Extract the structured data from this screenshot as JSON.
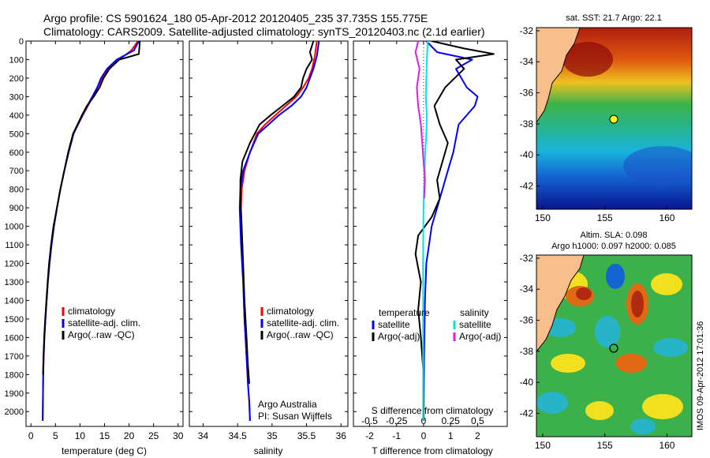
{
  "header": {
    "line1": "Argo profile: CS 5901624_180 05-Apr-2012 20120405_235 37.735S 155.775E",
    "line2": "Climatology: CARS2009. Satellite-adjusted climatology: synTS_20120403.nc (2.1d earlier)"
  },
  "credit": {
    "line1": "Argo Australia",
    "line2": "PI: Susan Wijffels"
  },
  "stamp": "IMOS 09-Apr-2012 17:01:36",
  "map_titles": {
    "sst": "sat. SST: 21.7 Argo: 22.1",
    "sla1": "Altim. SLA: 0.098",
    "sla2": "Argo h1000: 0.097 h2000: 0.085"
  },
  "colors": {
    "climatology": "#ff0000",
    "satellite": "#0000ff",
    "argo": "#000000",
    "salinity_satellite": "#00e6e6",
    "salinity_argo": "#e619e6",
    "land": "#f8be8c",
    "marker": "#ffff00"
  },
  "chart_data": [
    {
      "type": "line",
      "panel": "temperature",
      "xlabel": "temperature (deg C)",
      "ylabel": "",
      "xlim": [
        -1,
        31
      ],
      "ylim": [
        2080,
        0
      ],
      "xticks": [
        0,
        5,
        10,
        15,
        20,
        25,
        30
      ],
      "yticks": [
        0,
        100,
        200,
        300,
        400,
        500,
        600,
        700,
        800,
        900,
        1000,
        1100,
        1200,
        1300,
        1400,
        1500,
        1600,
        1700,
        1800,
        1900,
        2000
      ],
      "legend": [
        "climatology",
        "satellite-adj. clim.",
        "Argo(..raw -QC)"
      ],
      "legend_position": "lower-right",
      "series": [
        {
          "name": "climatology",
          "color": "#ff0000",
          "x": [
            21.8,
            20.5,
            18.0,
            15.8,
            14.5,
            13.6,
            12.6,
            11.6,
            10.6,
            9.6,
            8.6,
            7.6,
            6.8,
            6.0,
            5.3,
            4.7,
            4.2,
            3.8,
            3.45,
            3.2,
            2.95,
            2.75,
            2.6,
            2.5,
            2.45,
            2.4
          ],
          "y": [
            0,
            50,
            100,
            150,
            200,
            250,
            300,
            350,
            400,
            450,
            500,
            600,
            700,
            800,
            900,
            1000,
            1100,
            1200,
            1300,
            1400,
            1500,
            1600,
            1700,
            1800,
            1900,
            2050
          ]
        },
        {
          "name": "satellite-adj. clim.",
          "color": "#0000ff",
          "x": [
            22.0,
            21.0,
            17.5,
            15.5,
            14.3,
            13.5,
            12.5,
            11.5,
            10.5,
            9.6,
            8.7,
            7.7,
            6.8,
            6.0,
            5.3,
            4.7,
            4.2,
            3.8,
            3.45,
            3.2,
            2.95,
            2.75,
            2.6,
            2.5,
            2.45,
            2.4
          ],
          "y": [
            0,
            50,
            100,
            150,
            200,
            250,
            300,
            350,
            400,
            450,
            500,
            600,
            700,
            800,
            900,
            1000,
            1100,
            1200,
            1300,
            1400,
            1500,
            1600,
            1700,
            1800,
            1900,
            2050
          ]
        },
        {
          "name": "Argo(..raw -QC)",
          "color": "#000000",
          "x": [
            22.2,
            22.0,
            18.0,
            16.0,
            14.8,
            14.0,
            12.8,
            11.4,
            10.4,
            9.5,
            8.6,
            7.6,
            6.8,
            6.0,
            5.3,
            4.6,
            4.1,
            3.7,
            3.4,
            3.15,
            2.9,
            2.7,
            2.55,
            2.45
          ],
          "y": [
            0,
            70,
            100,
            150,
            200,
            250,
            300,
            350,
            400,
            450,
            500,
            600,
            700,
            800,
            900,
            1000,
            1100,
            1200,
            1300,
            1400,
            1500,
            1600,
            1700,
            1800
          ]
        }
      ]
    },
    {
      "type": "line",
      "panel": "salinity",
      "xlabel": "salinity",
      "ylabel": "",
      "xlim": [
        33.8,
        36.1
      ],
      "ylim": [
        2080,
        0
      ],
      "xticks": [
        34,
        34.5,
        35,
        35.5,
        36
      ],
      "xtick_labels": [
        "34",
        "34.5",
        "35",
        "35.5",
        "36"
      ],
      "legend": [
        "climatology",
        "satellite-adj. clim.",
        "Argo(..raw -QC)"
      ],
      "legend_position": "center-right",
      "series": [
        {
          "name": "climatology",
          "color": "#ff0000",
          "x": [
            35.65,
            35.62,
            35.58,
            35.53,
            35.45,
            35.35,
            35.2,
            35.05,
            34.9,
            34.78,
            34.68,
            34.6,
            34.56,
            34.55,
            34.56,
            34.58,
            34.6,
            34.63,
            34.65,
            34.67,
            34.68
          ],
          "y": [
            0,
            80,
            150,
            200,
            250,
            300,
            350,
            400,
            450,
            500,
            600,
            700,
            800,
            900,
            1100,
            1300,
            1500,
            1700,
            1850,
            1950,
            2050
          ]
        },
        {
          "name": "satellite-adj. clim.",
          "color": "#0000ff",
          "x": [
            35.68,
            35.65,
            35.6,
            35.55,
            35.5,
            35.42,
            35.28,
            35.1,
            34.95,
            34.8,
            34.68,
            34.58,
            34.54,
            34.53,
            34.55,
            34.58,
            34.6,
            34.63,
            34.65,
            34.67,
            34.68
          ],
          "y": [
            0,
            80,
            150,
            200,
            250,
            300,
            350,
            400,
            450,
            500,
            600,
            700,
            800,
            900,
            1100,
            1300,
            1500,
            1700,
            1850,
            1950,
            2050
          ]
        },
        {
          "name": "Argo(..raw -QC)",
          "color": "#000000",
          "x": [
            35.6,
            35.55,
            35.58,
            35.5,
            35.45,
            35.42,
            35.32,
            35.15,
            34.98,
            34.82,
            34.68,
            34.57,
            34.54,
            34.54,
            34.56,
            34.58,
            34.6,
            34.63,
            34.65,
            34.67
          ],
          "y": [
            0,
            60,
            100,
            150,
            200,
            250,
            300,
            350,
            400,
            450,
            550,
            650,
            750,
            850,
            1000,
            1200,
            1400,
            1600,
            1750,
            1850
          ]
        }
      ]
    },
    {
      "type": "line",
      "panel": "difference",
      "xlabel": "T difference from climatology",
      "top_xlabel": "S difference from climatology",
      "xlim": [
        -2.6,
        3.1
      ],
      "ylim": [
        2080,
        0
      ],
      "xticks": [
        -2,
        -1,
        0,
        1,
        2
      ],
      "top_xticks": [
        -0.5,
        -0.25,
        0,
        0.25,
        0.5
      ],
      "top_xtick_labels": [
        "-0.5",
        "-0.25",
        "0",
        "0.25",
        "0.5"
      ],
      "legend": [
        "temperature satellite",
        "temperature Argo(-adj)",
        "salinity satellite",
        "salinity Argo(-adj)"
      ],
      "legend_titles": [
        "temperature",
        "salinity"
      ],
      "legend_labels": [
        "satellite",
        "Argo(-adj)",
        "satellite",
        "Argo(-adj)"
      ],
      "legend_position": "lower-center",
      "series": [
        {
          "name": "temperature satellite",
          "color": "#0000ff",
          "x": [
            0.1,
            0.5,
            1.8,
            1.2,
            1.6,
            2.0,
            1.9,
            1.3,
            1.1,
            0.9,
            0.7,
            0.5,
            0.3,
            0.2,
            0.1,
            0.05,
            0.02,
            0.0
          ],
          "y": [
            0,
            60,
            100,
            150,
            250,
            300,
            350,
            450,
            600,
            700,
            800,
            900,
            1000,
            1100,
            1200,
            1400,
            1700,
            2050
          ]
        },
        {
          "name": "temperature Argo(-adj)",
          "color": "#000000",
          "x": [
            0.3,
            1.5,
            2.6,
            1.2,
            1.5,
            0.8,
            0.4,
            0.6,
            0.9,
            0.7,
            0.5,
            0.6,
            0.3,
            -0.2,
            -0.3,
            -0.1,
            -0.2,
            -0.1,
            0.0
          ],
          "y": [
            0,
            40,
            70,
            100,
            150,
            250,
            350,
            450,
            550,
            650,
            750,
            850,
            950,
            1050,
            1150,
            1300,
            1450,
            1600,
            1800
          ]
        },
        {
          "name": "salinity satellite",
          "color": "#00e6e6",
          "x": [
            0.15,
            0.12,
            0.1,
            0.08,
            0.12,
            0.1,
            0.06,
            0.04,
            0.02,
            0.0,
            -0.01,
            -0.02,
            -0.02,
            -0.02,
            -0.02
          ],
          "y": [
            0,
            100,
            200,
            300,
            400,
            500,
            600,
            700,
            800,
            900,
            1000,
            1200,
            1500,
            1800,
            2050
          ]
        },
        {
          "name": "salinity Argo(-adj)",
          "color": "#e619e6",
          "x": [
            -0.2,
            -0.3,
            -0.15,
            -0.25,
            -0.2,
            -0.1,
            -0.05,
            0.0,
            0.05,
            0.02
          ],
          "y": [
            0,
            60,
            150,
            250,
            350,
            450,
            550,
            650,
            750,
            850
          ]
        }
      ]
    },
    {
      "type": "heatmap",
      "panel": "sst-map",
      "title": "sat. SST: 21.7 Argo: 22.1",
      "xlim": [
        149.5,
        162
      ],
      "ylim": [
        -43.5,
        -31.8
      ],
      "xticks": [
        150,
        155,
        160
      ],
      "yticks": [
        -32,
        -34,
        -36,
        -38,
        -40,
        -42
      ],
      "marker": {
        "lon": 155.775,
        "lat": -37.735
      }
    },
    {
      "type": "heatmap",
      "panel": "sla-map",
      "title": "Altim. SLA: 0.098",
      "subtitle": "Argo h1000: 0.097 h2000: 0.085",
      "xlim": [
        149.5,
        162
      ],
      "ylim": [
        -43.5,
        -31.8
      ],
      "xticks": [
        150,
        155,
        160
      ],
      "yticks": [
        -32,
        -34,
        -36,
        -38,
        -40,
        -42
      ],
      "marker": {
        "lon": 155.775,
        "lat": -37.735
      }
    }
  ]
}
